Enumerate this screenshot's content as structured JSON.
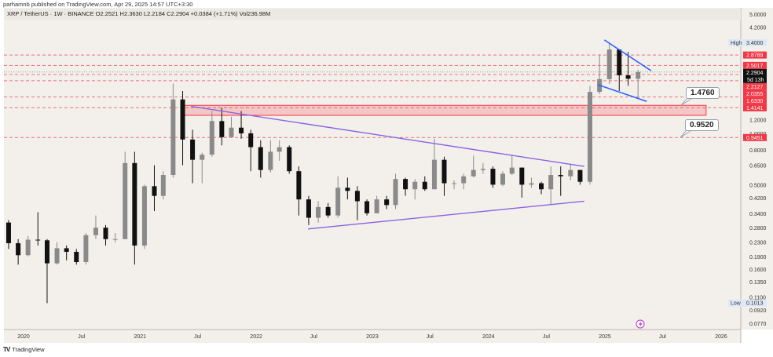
{
  "header": {
    "publisher": "parhamnb published on TradingView.com, Apr 29, 2025 14:57 UTC+3:30",
    "symbol_line": "XRP / TetherUS · 1W · BINANCE  O2.2521  H2.3630  L2.2184  C2.2904  +0.0384 (+1.71%)  Vol236.98M"
  },
  "footer": {
    "brand": "TradingView",
    "logo_text": "TV"
  },
  "colors": {
    "background": "#f3f0eb",
    "level_red": "#f23645",
    "trend_purple": "#8a63e0",
    "flag_blue": "#2962ff",
    "candle_up": "#8a8a8a",
    "candle_down": "#111111",
    "last_price_bg": "#111111",
    "high_low_bg": "#dde8f7",
    "event_icon": "#c64fd6"
  },
  "chart_data": {
    "type": "candlestick",
    "scale": "log",
    "ylim": [
      0.077,
      5.0
    ],
    "xlim": [
      "2019-11-01",
      "2026-03-01"
    ],
    "grid": false,
    "x_ticks": [
      {
        "label": "2020",
        "date": "2020-01-01"
      },
      {
        "label": "Jul",
        "date": "2020-07-01"
      },
      {
        "label": "2021",
        "date": "2021-01-01"
      },
      {
        "label": "Jul",
        "date": "2021-07-01"
      },
      {
        "label": "2022",
        "date": "2022-01-01"
      },
      {
        "label": "Jul",
        "date": "2022-07-01"
      },
      {
        "label": "2023",
        "date": "2023-01-01"
      },
      {
        "label": "Jul",
        "date": "2023-07-01"
      },
      {
        "label": "2024",
        "date": "2024-01-01"
      },
      {
        "label": "Jul",
        "date": "2024-07-01"
      },
      {
        "label": "2025",
        "date": "2025-01-01"
      },
      {
        "label": "Jul",
        "date": "2025-07-01"
      },
      {
        "label": "2026",
        "date": "2026-01-01"
      }
    ],
    "y_ticks": [
      "5.0000",
      "4.2000",
      "1.2000",
      "1.0000",
      "0.8000",
      "0.6500",
      "0.5000",
      "0.4200",
      "0.3400",
      "0.2800",
      "0.2300",
      "0.1900",
      "0.1600",
      "0.1350",
      "0.1100",
      "0.0920",
      "0.0770"
    ],
    "price_labels": [
      {
        "value": "3.4000",
        "tag": "High",
        "kind": "highlow"
      },
      {
        "value": "2.8789",
        "kind": "level"
      },
      {
        "value": "2.5017",
        "kind": "level"
      },
      {
        "value": "2.2904",
        "sub": "5d 13h",
        "kind": "last"
      },
      {
        "value": "2.2127",
        "kind": "level"
      },
      {
        "value": "2.0355",
        "kind": "level"
      },
      {
        "value": "1.6330",
        "kind": "level"
      },
      {
        "value": "1.4141",
        "kind": "level"
      },
      {
        "value": "0.9451",
        "kind": "level"
      },
      {
        "value": "0.1013",
        "tag": "Low",
        "kind": "highlow"
      }
    ],
    "levels": [
      2.8789,
      2.5017,
      2.2127,
      2.0355,
      1.633,
      1.4141,
      0.9451
    ],
    "last_price": 2.2904,
    "zone": {
      "from": "2021-05-20",
      "to": "2025-11-15",
      "low": 1.275,
      "high": 1.46
    },
    "callouts": [
      {
        "label": "1.4760",
        "value": 1.476
      },
      {
        "label": "0.9520",
        "value": 0.952
      }
    ],
    "trendlines": [
      {
        "color": "purple",
        "p1": [
          "2021-06-10",
          1.44
        ],
        "p2": [
          "2024-10-28",
          0.64
        ]
      },
      {
        "color": "purple",
        "p1": [
          "2022-06-13",
          0.275
        ],
        "p2": [
          "2024-10-28",
          0.4
        ]
      },
      {
        "color": "blue",
        "p1": [
          "2024-12-30",
          3.53
        ],
        "p2": [
          "2025-05-26",
          2.33
        ]
      },
      {
        "color": "blue",
        "p1": [
          "2024-12-09",
          1.93
        ],
        "p2": [
          "2025-05-12",
          1.54
        ]
      }
    ],
    "candles": [
      [
        "2019-11",
        0.3,
        0.31,
        0.21,
        0.227
      ],
      [
        "2019-12",
        0.227,
        0.24,
        0.17,
        0.193
      ],
      [
        "2020-01",
        0.193,
        0.25,
        0.19,
        0.238
      ],
      [
        "2020-02",
        0.238,
        0.345,
        0.22,
        0.236
      ],
      [
        "2020-03",
        0.236,
        0.24,
        0.101,
        0.173
      ],
      [
        "2020-04",
        0.173,
        0.23,
        0.17,
        0.212
      ],
      [
        "2020-05",
        0.212,
        0.22,
        0.18,
        0.202
      ],
      [
        "2020-06",
        0.202,
        0.21,
        0.17,
        0.176
      ],
      [
        "2020-07",
        0.176,
        0.26,
        0.17,
        0.253
      ],
      [
        "2020-08",
        0.253,
        0.33,
        0.24,
        0.28
      ],
      [
        "2020-09",
        0.28,
        0.29,
        0.22,
        0.24
      ],
      [
        "2020-10",
        0.24,
        0.26,
        0.23,
        0.24
      ],
      [
        "2020-11",
        0.24,
        0.78,
        0.24,
        0.67
      ],
      [
        "2020-12",
        0.67,
        0.78,
        0.17,
        0.22
      ],
      [
        "2021-01",
        0.22,
        0.5,
        0.21,
        0.49
      ],
      [
        "2021-02",
        0.49,
        0.65,
        0.35,
        0.43
      ],
      [
        "2021-03",
        0.43,
        0.6,
        0.41,
        0.57
      ],
      [
        "2021-04",
        0.57,
        1.96,
        0.55,
        1.58
      ],
      [
        "2021-05",
        1.58,
        1.77,
        0.65,
        0.92
      ],
      [
        "2021-06",
        0.92,
        1.05,
        0.51,
        0.7
      ],
      [
        "2021-07",
        0.7,
        0.77,
        0.51,
        0.75
      ],
      [
        "2021-08",
        0.75,
        1.35,
        0.73,
        1.18
      ],
      [
        "2021-09",
        1.18,
        1.41,
        0.85,
        0.95
      ],
      [
        "2021-10",
        0.95,
        1.25,
        0.95,
        1.08
      ],
      [
        "2021-11",
        1.08,
        1.35,
        0.93,
        1.0
      ],
      [
        "2021-12",
        1.0,
        1.05,
        0.6,
        0.83
      ],
      [
        "2022-01",
        0.83,
        0.91,
        0.55,
        0.61
      ],
      [
        "2022-02",
        0.61,
        0.91,
        0.59,
        0.78
      ],
      [
        "2022-03",
        0.78,
        0.91,
        0.69,
        0.83
      ],
      [
        "2022-04",
        0.83,
        0.85,
        0.58,
        0.6
      ],
      [
        "2022-05",
        0.6,
        0.64,
        0.33,
        0.41
      ],
      [
        "2022-06",
        0.41,
        0.43,
        0.29,
        0.32
      ],
      [
        "2022-07",
        0.32,
        0.4,
        0.3,
        0.37
      ],
      [
        "2022-08",
        0.37,
        0.39,
        0.32,
        0.33
      ],
      [
        "2022-09",
        0.33,
        0.56,
        0.32,
        0.48
      ],
      [
        "2022-10",
        0.48,
        0.55,
        0.41,
        0.46
      ],
      [
        "2022-11",
        0.46,
        0.49,
        0.31,
        0.4
      ],
      [
        "2022-12",
        0.4,
        0.41,
        0.33,
        0.34
      ],
      [
        "2023-01",
        0.34,
        0.43,
        0.34,
        0.41
      ],
      [
        "2023-02",
        0.41,
        0.43,
        0.36,
        0.38
      ],
      [
        "2023-03",
        0.38,
        0.58,
        0.36,
        0.54
      ],
      [
        "2023-04",
        0.54,
        0.55,
        0.43,
        0.47
      ],
      [
        "2023-05",
        0.47,
        0.54,
        0.41,
        0.52
      ],
      [
        "2023-06",
        0.52,
        0.56,
        0.46,
        0.47
      ],
      [
        "2023-07",
        0.47,
        0.93,
        0.47,
        0.7
      ],
      [
        "2023-08",
        0.7,
        0.73,
        0.43,
        0.51
      ],
      [
        "2023-09",
        0.51,
        0.53,
        0.47,
        0.51
      ],
      [
        "2023-10",
        0.51,
        0.58,
        0.47,
        0.56
      ],
      [
        "2023-11",
        0.56,
        0.74,
        0.55,
        0.61
      ],
      [
        "2023-12",
        0.61,
        0.67,
        0.58,
        0.62
      ],
      [
        "2024-01",
        0.62,
        0.64,
        0.48,
        0.5
      ],
      [
        "2024-02",
        0.5,
        0.6,
        0.49,
        0.58
      ],
      [
        "2024-03",
        0.58,
        0.74,
        0.57,
        0.63
      ],
      [
        "2024-04",
        0.63,
        0.63,
        0.42,
        0.5
      ],
      [
        "2024-05",
        0.5,
        0.55,
        0.48,
        0.51
      ],
      [
        "2024-06",
        0.51,
        0.52,
        0.44,
        0.47
      ],
      [
        "2024-07",
        0.47,
        0.64,
        0.38,
        0.57
      ],
      [
        "2024-08",
        0.57,
        0.64,
        0.43,
        0.56
      ],
      [
        "2024-09",
        0.56,
        0.66,
        0.53,
        0.61
      ],
      [
        "2024-10",
        0.61,
        0.61,
        0.5,
        0.52
      ],
      [
        "2024-11",
        0.52,
        1.9,
        0.5,
        1.75
      ],
      [
        "2024-12",
        1.75,
        2.9,
        1.7,
        2.08
      ],
      [
        "2025-01",
        2.08,
        3.4,
        1.95,
        3.1
      ],
      [
        "2025-02",
        3.1,
        3.1,
        1.77,
        2.19
      ],
      [
        "2025-03",
        2.19,
        3.0,
        1.9,
        2.09
      ],
      [
        "2025-04",
        2.09,
        2.36,
        1.61,
        2.29
      ]
    ]
  }
}
